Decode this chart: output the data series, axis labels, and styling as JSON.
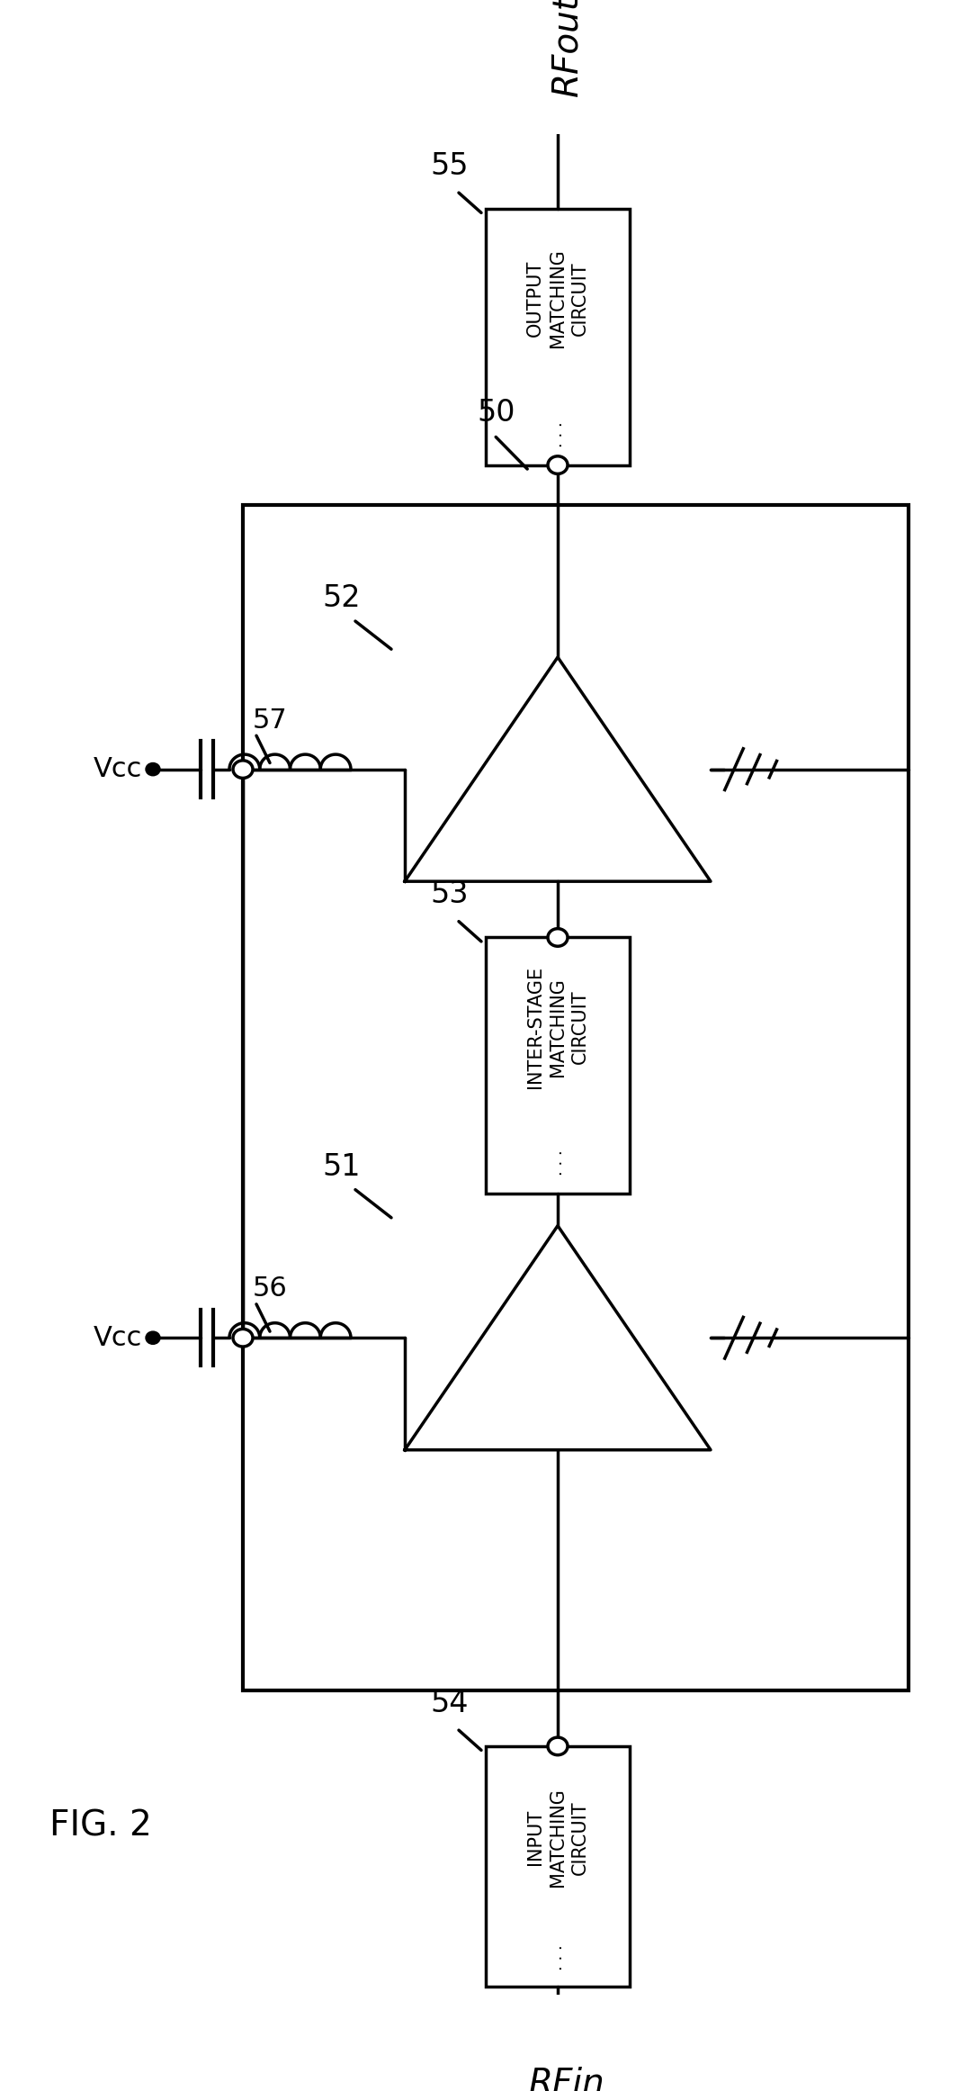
{
  "bg": "#ffffff",
  "lc": "#000000",
  "lw": 2.5,
  "fig_label": "FIG. 2",
  "rfin": "RFin",
  "rfout": "RFout",
  "vcc": "Vcc",
  "n50": "50",
  "n51": "51",
  "n52": "52",
  "n53": "53",
  "n54": "54",
  "n55": "55",
  "n56": "56",
  "n57": "57",
  "input_mc_text": "INPUT\nMATCHING\nCIRCUIT",
  "inter_mc_text": "INTER-STAGE\nMATCHING\nCIRCUIT",
  "output_mc_text": "OUTPUT\nMATCHING\nCIRCUIT",
  "dots": ". . ."
}
